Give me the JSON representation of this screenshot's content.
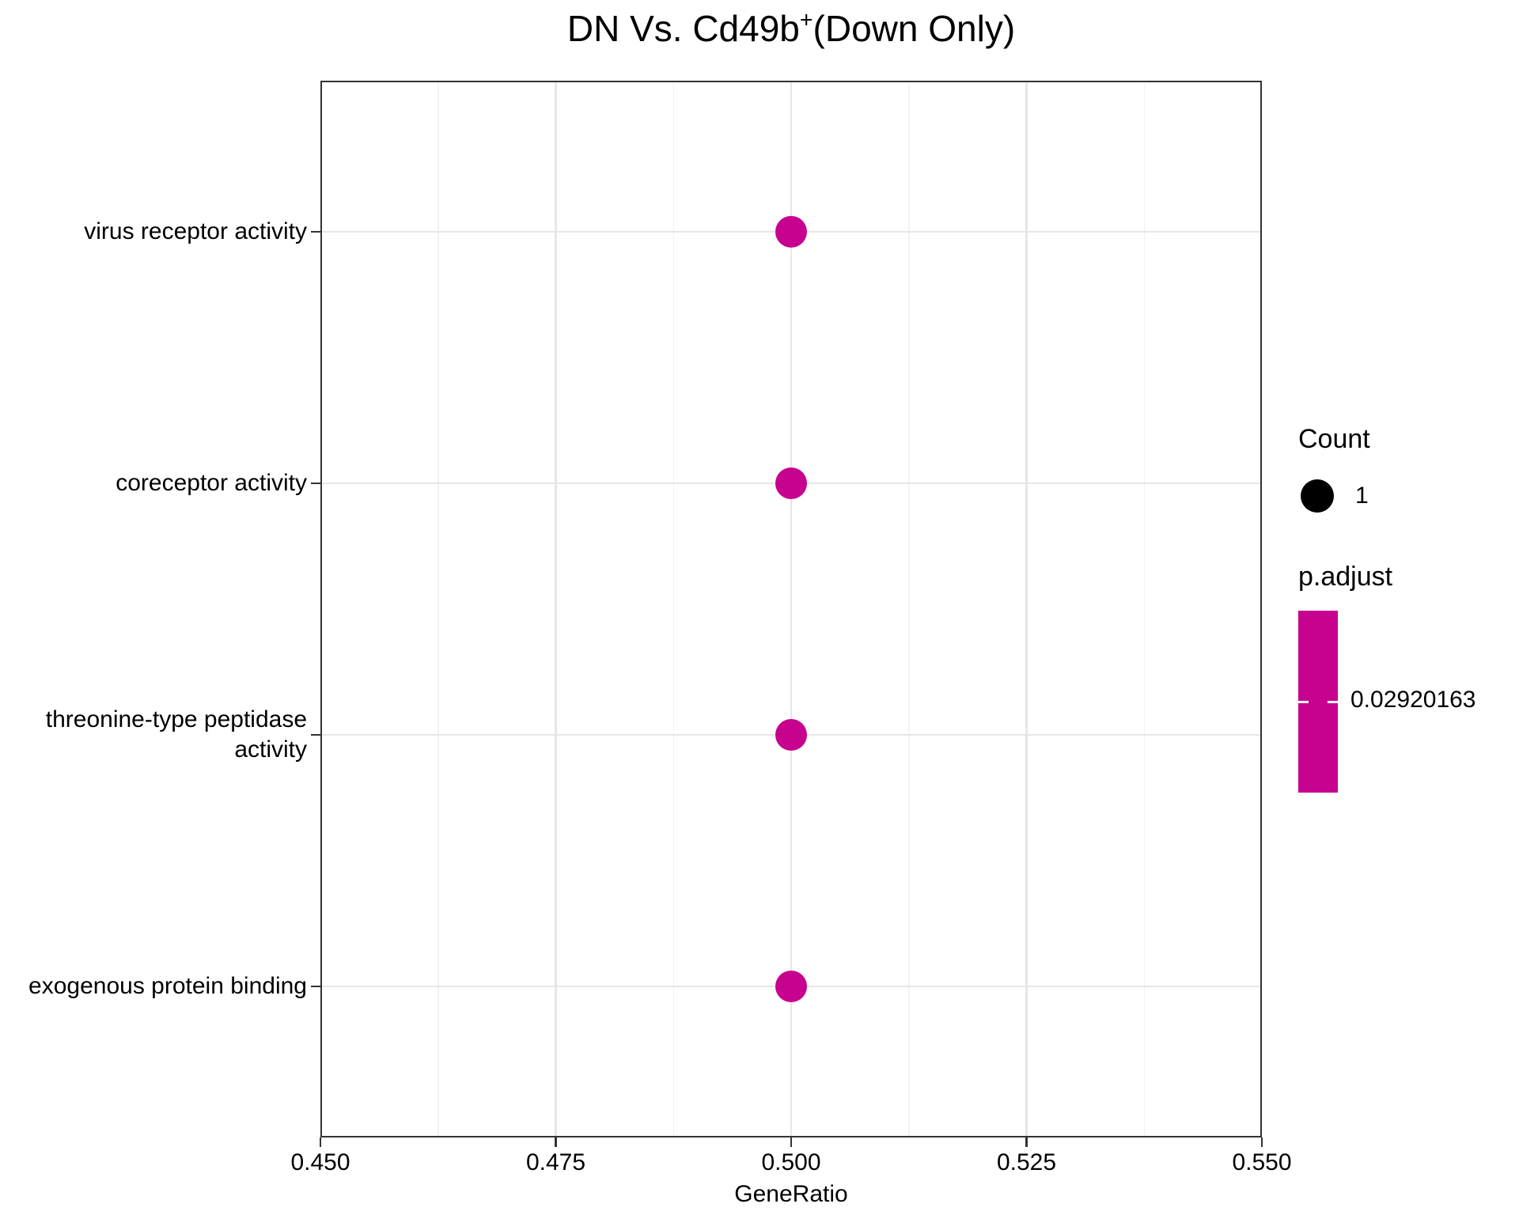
{
  "title": {
    "prefix": "DN Vs. Cd49b",
    "sup": "+",
    "suffix": "(Down Only)"
  },
  "chart_data": {
    "type": "scatter",
    "title": "DN Vs. Cd49b+(Down Only)",
    "xlabel": "GeneRatio",
    "xlim": [
      0.45,
      0.55
    ],
    "x_major_ticks": [
      0.45,
      0.475,
      0.5,
      0.525,
      0.55
    ],
    "x_tick_labels": [
      "0.450",
      "0.475",
      "0.500",
      "0.525",
      "0.550"
    ],
    "x_minor_ticks": [
      0.4625,
      0.4875,
      0.5125,
      0.5375
    ],
    "grid": true,
    "legend_position": "right",
    "categories_top_to_bottom": [
      "virus receptor activity",
      "coreceptor activity",
      "threonine-type peptidase activity",
      "exogenous protein binding"
    ],
    "points": [
      {
        "category": "virus receptor activity",
        "gene_ratio": 0.5,
        "count": 1,
        "p_adjust": 0.02920163
      },
      {
        "category": "coreceptor activity",
        "gene_ratio": 0.5,
        "count": 1,
        "p_adjust": 0.02920163
      },
      {
        "category": "threonine-type peptidase activity",
        "gene_ratio": 0.5,
        "count": 1,
        "p_adjust": 0.02920163
      },
      {
        "category": "exogenous protein binding",
        "gene_ratio": 0.5,
        "count": 1,
        "p_adjust": 0.02920163
      }
    ],
    "legend": {
      "count": {
        "title": "Count",
        "entries": [
          {
            "label": "1",
            "size": 1
          }
        ]
      },
      "p_adjust": {
        "title": "p.adjust",
        "tick_label": "0.02920163",
        "tick_value": 0.02920163
      }
    },
    "colors": {
      "point": "#C6028F",
      "colorbar": "#C6028F",
      "count_key": "#000000",
      "grid_major": "#E6E6E6",
      "grid_minor": "#F2F2F2",
      "panel_border": "#333333",
      "tick_mark": "#333333",
      "text": "#000000",
      "background": "#FFFFFF"
    }
  }
}
